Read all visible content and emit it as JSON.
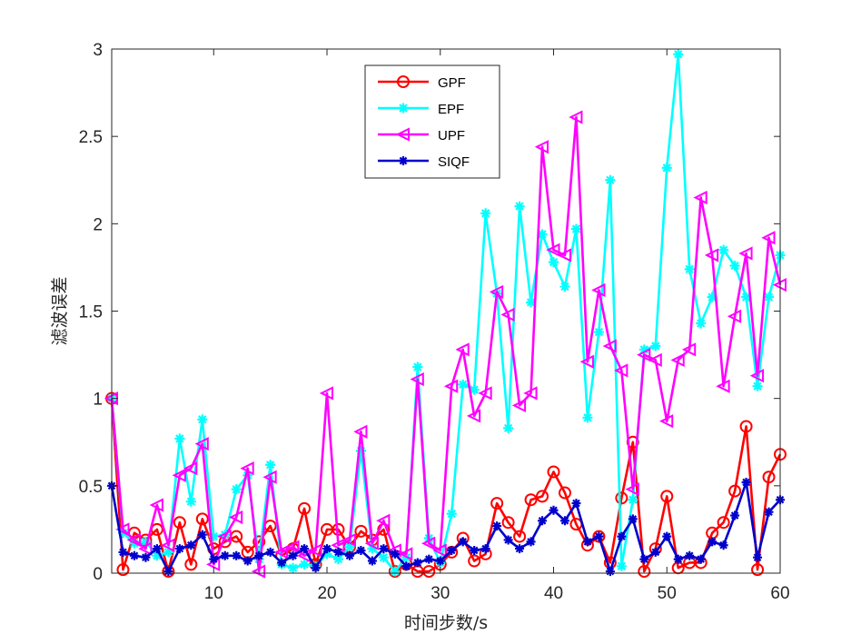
{
  "chart_data": {
    "type": "line",
    "title": "",
    "xlabel": "时间步数/s",
    "ylabel": "滤波误差",
    "xlim": [
      1,
      60
    ],
    "ylim": [
      0,
      3
    ],
    "xticks": [
      "10",
      "20",
      "30",
      "40",
      "50",
      "60"
    ],
    "yticks": [
      "0",
      "0.5",
      "1",
      "1.5",
      "2",
      "2.5",
      "3"
    ],
    "grid": false,
    "legend_position": "top-center",
    "x": [
      1,
      2,
      3,
      4,
      5,
      6,
      7,
      8,
      9,
      10,
      11,
      12,
      13,
      14,
      15,
      16,
      17,
      18,
      19,
      20,
      21,
      22,
      23,
      24,
      25,
      26,
      27,
      28,
      29,
      30,
      31,
      32,
      33,
      34,
      35,
      36,
      37,
      38,
      39,
      40,
      41,
      42,
      43,
      44,
      45,
      46,
      47,
      48,
      49,
      50,
      51,
      52,
      53,
      54,
      55,
      56,
      57,
      58,
      59,
      60
    ],
    "series": [
      {
        "name": "GPF",
        "color": "#ff0000",
        "marker": "circle",
        "values": [
          1.0,
          0.02,
          0.23,
          0.19,
          0.25,
          0.01,
          0.29,
          0.05,
          0.31,
          0.14,
          0.18,
          0.21,
          0.12,
          0.18,
          0.27,
          0.1,
          0.14,
          0.37,
          0.05,
          0.25,
          0.25,
          0.15,
          0.24,
          0.19,
          0.25,
          0.01,
          0.05,
          0.01,
          0.01,
          0.05,
          0.12,
          0.2,
          0.07,
          0.11,
          0.4,
          0.29,
          0.21,
          0.42,
          0.44,
          0.58,
          0.46,
          0.28,
          0.16,
          0.21,
          0.06,
          0.43,
          0.75,
          0.01,
          0.14,
          0.44,
          0.03,
          0.06,
          0.06,
          0.23,
          0.29,
          0.47,
          0.84,
          0.02,
          0.55,
          0.68
        ]
      },
      {
        "name": "EPF",
        "color": "#00ffff",
        "marker": "star",
        "values": [
          1.0,
          0.23,
          0.17,
          0.18,
          0.1,
          0.12,
          0.77,
          0.41,
          0.88,
          0.21,
          0.22,
          0.48,
          0.56,
          0.08,
          0.62,
          0.05,
          0.03,
          0.05,
          0.04,
          0.11,
          0.08,
          0.15,
          0.7,
          0.14,
          0.09,
          0.01,
          0.09,
          1.18,
          0.2,
          0.06,
          0.34,
          1.08,
          1.05,
          2.06,
          1.6,
          0.83,
          2.1,
          1.55,
          1.94,
          1.78,
          1.64,
          1.97,
          0.89,
          1.38,
          2.25,
          0.04,
          0.42,
          1.28,
          1.3,
          2.32,
          2.97,
          1.74,
          1.43,
          1.58,
          1.85,
          1.76,
          1.58,
          1.07,
          1.58,
          1.82
        ]
      },
      {
        "name": "UPF",
        "color": "#ff00ff",
        "marker": "triangle-left",
        "values": [
          1.0,
          0.25,
          0.19,
          0.14,
          0.39,
          0.16,
          0.56,
          0.6,
          0.74,
          0.05,
          0.21,
          0.32,
          0.6,
          0.01,
          0.55,
          0.12,
          0.15,
          0.1,
          0.13,
          1.03,
          0.16,
          0.19,
          0.81,
          0.17,
          0.3,
          0.13,
          0.11,
          1.11,
          0.17,
          0.13,
          1.07,
          1.28,
          0.9,
          1.03,
          1.61,
          1.48,
          0.96,
          1.03,
          2.44,
          1.85,
          1.82,
          2.61,
          1.21,
          1.62,
          1.3,
          1.16,
          0.48,
          1.25,
          1.22,
          0.87,
          1.22,
          1.28,
          2.15,
          1.82,
          1.07,
          1.47,
          1.83,
          1.13,
          1.92,
          1.65
        ]
      },
      {
        "name": "SIQF",
        "color": "#0000cd",
        "marker": "asterisk",
        "values": [
          0.5,
          0.12,
          0.1,
          0.09,
          0.14,
          0.01,
          0.14,
          0.16,
          0.22,
          0.08,
          0.1,
          0.1,
          0.07,
          0.1,
          0.12,
          0.06,
          0.1,
          0.14,
          0.03,
          0.14,
          0.12,
          0.1,
          0.13,
          0.07,
          0.14,
          0.11,
          0.04,
          0.06,
          0.08,
          0.07,
          0.13,
          0.18,
          0.13,
          0.14,
          0.27,
          0.19,
          0.14,
          0.18,
          0.3,
          0.36,
          0.3,
          0.4,
          0.18,
          0.21,
          0.01,
          0.21,
          0.31,
          0.08,
          0.12,
          0.21,
          0.08,
          0.1,
          0.08,
          0.18,
          0.16,
          0.33,
          0.52,
          0.09,
          0.35,
          0.42
        ]
      }
    ]
  }
}
